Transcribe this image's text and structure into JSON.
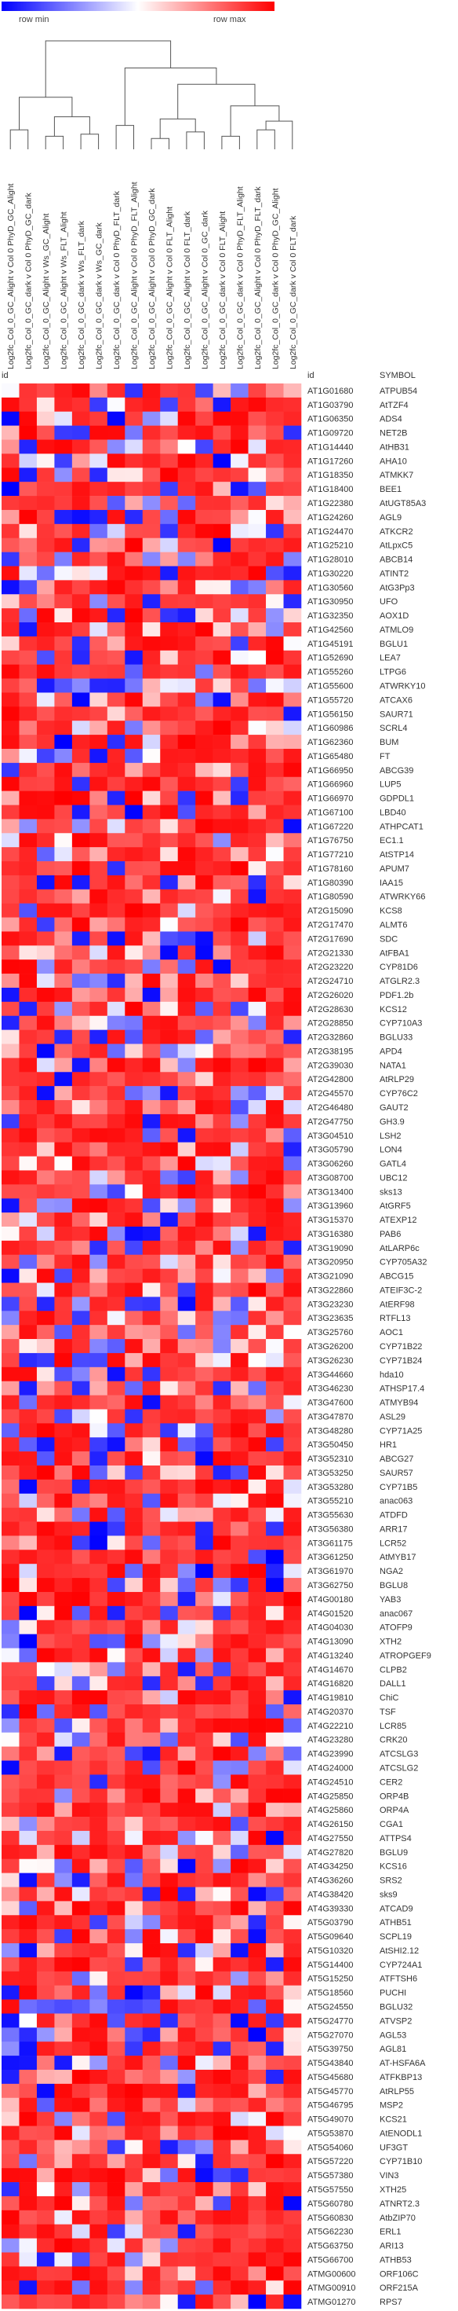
{
  "chart_data": {
    "type": "heatmap",
    "legend": {
      "min_label": "row min",
      "max_label": "row max",
      "min_color": "#0000ff",
      "mid_color": "#ffffff",
      "max_color": "#ff0000"
    },
    "corner_label": "id",
    "row_header_id": "id",
    "row_header_symbol": "SYMBOL",
    "columns": [
      "Log2fc_Col_0_GC_Alight v Col 0 PhyD_GC_Alight",
      "Log2fc_Col_0_GC_dark v Col 0 PhyD_GC_dark",
      "Log2fc_Col_0_GC_Alight v Ws_GC_Alight",
      "Log2fc_Col_0_GC_Alight v Ws_FLT_Alight",
      "Log2fc_Col_0_GC_dark v Ws_FLT_dark",
      "Log2fc_Col_0_GC_dark v Ws_GC_dark",
      "Log2fc_Col_0_GC_dark v Col 0 PhyD_FLT_dark",
      "Log2fc_Col_0_GC_Alight v Col 0 PhyD_FLT_Alight",
      "Log2fc_Col_0_GC_Alight v Col 0 PhyD_GC_dark",
      "Log2fc_Col_0_GC_Alight v Col 0 FLT_Alight",
      "Log2fc_Col_0_GC_Alight v Col 0 FLT_dark",
      "Log2fc_Col_0_GC_Alight v Col 0_GC_dark",
      "Log2fc_Col_0_GC_dark v Col 0 FLT_Alight",
      "Log2fc_Col_0_GC_dark v Col 0 PhyD_FLT_Alight",
      "Log2fc_Col_0_GC_Alight v Col 0 PhyD_FLT_dark",
      "Log2fc_Col_0_GC_dark v Col 0 PhyD_GC_Alight",
      "Log2fc_Col_0_GC_dark v Col 0 FLT_dark"
    ],
    "rows": [
      {
        "id": "AT1G01680",
        "symbol": "ATPUB54"
      },
      {
        "id": "AT1G03790",
        "symbol": "AtTZF4"
      },
      {
        "id": "AT1G06350",
        "symbol": "ADS4"
      },
      {
        "id": "AT1G09720",
        "symbol": "NET2B"
      },
      {
        "id": "AT1G14440",
        "symbol": "AtHB31"
      },
      {
        "id": "AT1G17260",
        "symbol": "AHA10"
      },
      {
        "id": "AT1G18350",
        "symbol": "ATMKK7"
      },
      {
        "id": "AT1G18400",
        "symbol": "BEE1"
      },
      {
        "id": "AT1G22380",
        "symbol": "AtUGT85A3"
      },
      {
        "id": "AT1G24260",
        "symbol": "AGL9"
      },
      {
        "id": "AT1G24470",
        "symbol": "ATKCR2"
      },
      {
        "id": "AT1G25210",
        "symbol": "AtLpxC5"
      },
      {
        "id": "AT1G28010",
        "symbol": "ABCB14"
      },
      {
        "id": "AT1G30220",
        "symbol": "ATINT2"
      },
      {
        "id": "AT1G30560",
        "symbol": "AtG3Pp3"
      },
      {
        "id": "AT1G30950",
        "symbol": "UFO"
      },
      {
        "id": "AT1G32350",
        "symbol": "AOX1D"
      },
      {
        "id": "AT1G42560",
        "symbol": "ATMLO9"
      },
      {
        "id": "AT1G45191",
        "symbol": "BGLU1"
      },
      {
        "id": "AT1G52690",
        "symbol": "LEA7"
      },
      {
        "id": "AT1G55260",
        "symbol": "LTPG6"
      },
      {
        "id": "AT1G55600",
        "symbol": "ATWRKY10"
      },
      {
        "id": "AT1G55720",
        "symbol": "ATCAX6"
      },
      {
        "id": "AT1G56150",
        "symbol": "SAUR71"
      },
      {
        "id": "AT1G60986",
        "symbol": "SCRL4"
      },
      {
        "id": "AT1G62360",
        "symbol": "BUM"
      },
      {
        "id": "AT1G65480",
        "symbol": "FT"
      },
      {
        "id": "AT1G66950",
        "symbol": "ABCG39"
      },
      {
        "id": "AT1G66960",
        "symbol": "LUP5"
      },
      {
        "id": "AT1G66970",
        "symbol": "GDPDL1"
      },
      {
        "id": "AT1G67100",
        "symbol": "LBD40"
      },
      {
        "id": "AT1G67220",
        "symbol": "ATHPCAT1"
      },
      {
        "id": "AT1G76750",
        "symbol": "EC1.1"
      },
      {
        "id": "AT1G77210",
        "symbol": "AtSTP14"
      },
      {
        "id": "AT1G78160",
        "symbol": "APUM7"
      },
      {
        "id": "AT1G80390",
        "symbol": "IAA15"
      },
      {
        "id": "AT1G80590",
        "symbol": "ATWRKY66"
      },
      {
        "id": "AT2G15090",
        "symbol": "KCS8"
      },
      {
        "id": "AT2G17470",
        "symbol": "ALMT6"
      },
      {
        "id": "AT2G17690",
        "symbol": "SDC"
      },
      {
        "id": "AT2G21330",
        "symbol": "AtFBA1"
      },
      {
        "id": "AT2G23220",
        "symbol": "CYP81D6"
      },
      {
        "id": "AT2G24710",
        "symbol": "ATGLR2.3"
      },
      {
        "id": "AT2G26020",
        "symbol": "PDF1.2b"
      },
      {
        "id": "AT2G28630",
        "symbol": "KCS12"
      },
      {
        "id": "AT2G28850",
        "symbol": "CYP710A3"
      },
      {
        "id": "AT2G32860",
        "symbol": "BGLU33"
      },
      {
        "id": "AT2G38195",
        "symbol": "APD4"
      },
      {
        "id": "AT2G39030",
        "symbol": "NATA1"
      },
      {
        "id": "AT2G42800",
        "symbol": "AtRLP29"
      },
      {
        "id": "AT2G45570",
        "symbol": "CYP76C2"
      },
      {
        "id": "AT2G46480",
        "symbol": "GAUT2"
      },
      {
        "id": "AT2G47750",
        "symbol": "GH3.9"
      },
      {
        "id": "AT3G04510",
        "symbol": "LSH2"
      },
      {
        "id": "AT3G05790",
        "symbol": "LON4"
      },
      {
        "id": "AT3G06260",
        "symbol": "GATL4"
      },
      {
        "id": "AT3G08700",
        "symbol": "UBC12"
      },
      {
        "id": "AT3G13400",
        "symbol": "sks13"
      },
      {
        "id": "AT3G13960",
        "symbol": "AtGRF5"
      },
      {
        "id": "AT3G15370",
        "symbol": "ATEXP12"
      },
      {
        "id": "AT3G16380",
        "symbol": "PAB6"
      },
      {
        "id": "AT3G19090",
        "symbol": "AtLARP6c"
      },
      {
        "id": "AT3G20950",
        "symbol": "CYP705A32"
      },
      {
        "id": "AT3G21090",
        "symbol": "ABCG15"
      },
      {
        "id": "AT3G22860",
        "symbol": "ATEIF3C-2"
      },
      {
        "id": "AT3G23230",
        "symbol": "AtERF98"
      },
      {
        "id": "AT3G23635",
        "symbol": "RTFL13"
      },
      {
        "id": "AT3G25760",
        "symbol": "AOC1"
      },
      {
        "id": "AT3G26200",
        "symbol": "CYP71B22"
      },
      {
        "id": "AT3G26230",
        "symbol": "CYP71B24"
      },
      {
        "id": "AT3G44660",
        "symbol": "hda10"
      },
      {
        "id": "AT3G46230",
        "symbol": "ATHSP17.4"
      },
      {
        "id": "AT3G47600",
        "symbol": "ATMYB94"
      },
      {
        "id": "AT3G47870",
        "symbol": "ASL29"
      },
      {
        "id": "AT3G48280",
        "symbol": "CYP71A25"
      },
      {
        "id": "AT3G50450",
        "symbol": "HR1"
      },
      {
        "id": "AT3G52310",
        "symbol": "ABCG27"
      },
      {
        "id": "AT3G53250",
        "symbol": "SAUR57"
      },
      {
        "id": "AT3G53280",
        "symbol": "CYP71B5"
      },
      {
        "id": "AT3G55210",
        "symbol": "anac063"
      },
      {
        "id": "AT3G55630",
        "symbol": "ATDFD"
      },
      {
        "id": "AT3G56380",
        "symbol": "ARR17"
      },
      {
        "id": "AT3G61175",
        "symbol": "LCR52"
      },
      {
        "id": "AT3G61250",
        "symbol": "AtMYB17"
      },
      {
        "id": "AT3G61970",
        "symbol": "NGA2"
      },
      {
        "id": "AT3G62750",
        "symbol": "BGLU8"
      },
      {
        "id": "AT4G00180",
        "symbol": "YAB3"
      },
      {
        "id": "AT4G01520",
        "symbol": "anac067"
      },
      {
        "id": "AT4G04030",
        "symbol": "ATOFP9"
      },
      {
        "id": "AT4G13090",
        "symbol": "XTH2"
      },
      {
        "id": "AT4G13240",
        "symbol": "ATROPGEF9"
      },
      {
        "id": "AT4G14670",
        "symbol": "CLPB2"
      },
      {
        "id": "AT4G16820",
        "symbol": "DALL1"
      },
      {
        "id": "AT4G19810",
        "symbol": "ChiC"
      },
      {
        "id": "AT4G20370",
        "symbol": "TSF"
      },
      {
        "id": "AT4G22210",
        "symbol": "LCR85"
      },
      {
        "id": "AT4G23280",
        "symbol": "CRK20"
      },
      {
        "id": "AT4G23990",
        "symbol": "ATCSLG3"
      },
      {
        "id": "AT4G24000",
        "symbol": "ATCSLG2"
      },
      {
        "id": "AT4G24510",
        "symbol": "CER2"
      },
      {
        "id": "AT4G25850",
        "symbol": "ORP4B"
      },
      {
        "id": "AT4G25860",
        "symbol": "ORP4A"
      },
      {
        "id": "AT4G26150",
        "symbol": "CGA1"
      },
      {
        "id": "AT4G27550",
        "symbol": "ATTPS4"
      },
      {
        "id": "AT4G27820",
        "symbol": "BGLU9"
      },
      {
        "id": "AT4G34250",
        "symbol": "KCS16"
      },
      {
        "id": "AT4G36260",
        "symbol": "SRS2"
      },
      {
        "id": "AT4G38420",
        "symbol": "sks9"
      },
      {
        "id": "AT4G39330",
        "symbol": "ATCAD9"
      },
      {
        "id": "AT5G03790",
        "symbol": "ATHB51"
      },
      {
        "id": "AT5G09640",
        "symbol": "SCPL19"
      },
      {
        "id": "AT5G10320",
        "symbol": "AtSHI2.12"
      },
      {
        "id": "AT5G14400",
        "symbol": "CYP724A1"
      },
      {
        "id": "AT5G15250",
        "symbol": "ATFTSH6"
      },
      {
        "id": "AT5G18560",
        "symbol": "PUCHI"
      },
      {
        "id": "AT5G24550",
        "symbol": "BGLU32"
      },
      {
        "id": "AT5G24770",
        "symbol": "ATVSP2"
      },
      {
        "id": "AT5G27070",
        "symbol": "AGL53"
      },
      {
        "id": "AT5G39750",
        "symbol": "AGL81"
      },
      {
        "id": "AT5G43840",
        "symbol": "AT-HSFA6A"
      },
      {
        "id": "AT5G45680",
        "symbol": "ATFKBP13"
      },
      {
        "id": "AT5G45770",
        "symbol": "AtRLP55"
      },
      {
        "id": "AT5G46795",
        "symbol": "MSP2"
      },
      {
        "id": "AT5G49070",
        "symbol": "KCS21"
      },
      {
        "id": "AT5G53870",
        "symbol": "AtENODL1"
      },
      {
        "id": "AT5G54060",
        "symbol": "UF3GT"
      },
      {
        "id": "AT5G57220",
        "symbol": "CYP71B10"
      },
      {
        "id": "AT5G57380",
        "symbol": "VIN3"
      },
      {
        "id": "AT5G57550",
        "symbol": "XTH25"
      },
      {
        "id": "AT5G60780",
        "symbol": "ATNRT2.3"
      },
      {
        "id": "AT5G60830",
        "symbol": "AtbZIP70"
      },
      {
        "id": "AT5G62230",
        "symbol": "ERL1"
      },
      {
        "id": "AT5G63750",
        "symbol": "ARI13"
      },
      {
        "id": "AT5G66700",
        "symbol": "ATHB53"
      },
      {
        "id": "ATMG00600",
        "symbol": "ORF106C"
      },
      {
        "id": "ATMG00910",
        "symbol": "ORF215A"
      },
      {
        "id": "ATMG01270",
        "symbol": "RPS7"
      }
    ]
  }
}
